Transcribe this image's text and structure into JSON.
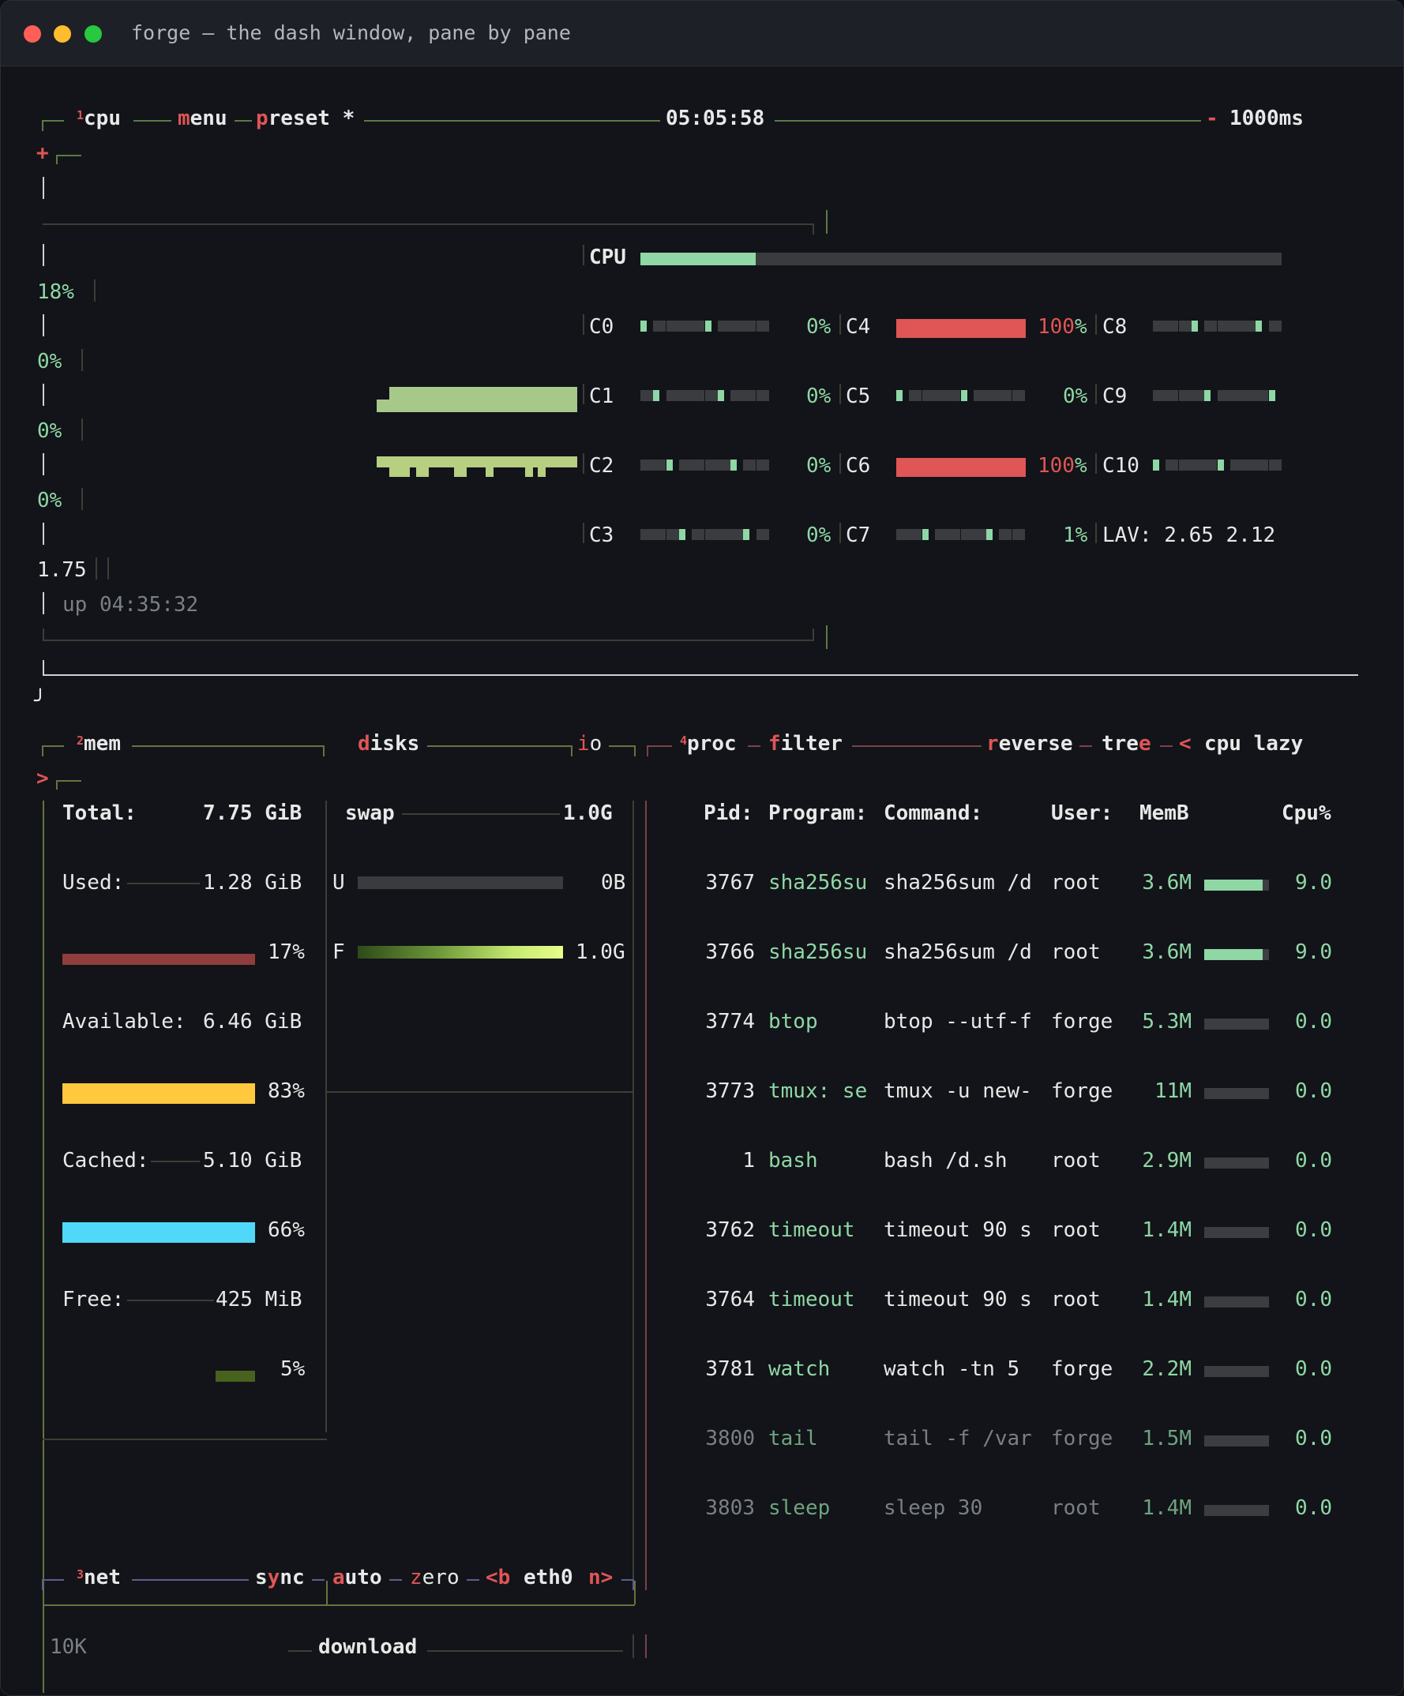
{
  "window": {
    "title": "forge — the dash window, pane by pane"
  },
  "colors": {
    "green": "#8fd7a5",
    "red": "#e05555",
    "yellow": "#ffc83d",
    "cyan": "#50d8f8",
    "darkred": "#8f3d3d"
  },
  "cpu_box": {
    "number": "1",
    "label": "cpu",
    "menu_first": "m",
    "menu_rest": "enu",
    "preset_first": "p",
    "preset_rest": "reset *",
    "clock": "05:05:58",
    "minus": "-",
    "interval": "1000ms",
    "plus": "+",
    "cpu_label": "CPU",
    "cpu_percent": 18,
    "graph_pct": [
      "18%",
      "0%",
      "0%",
      "0%"
    ],
    "load_value": "1.75",
    "uptime": "up 04:35:32",
    "cores": [
      {
        "name": "C0",
        "pct": "0%"
      },
      {
        "name": "C1",
        "pct": "0%"
      },
      {
        "name": "C2",
        "pct": "0%"
      },
      {
        "name": "C3",
        "pct": "0%"
      },
      {
        "name": "C4",
        "pct": "100",
        "unit": "%"
      },
      {
        "name": "C5",
        "pct": "0%"
      },
      {
        "name": "C6",
        "pct": "100",
        "unit": "%"
      },
      {
        "name": "C7",
        "pct": "1%"
      },
      {
        "name": "C8"
      },
      {
        "name": "C9"
      },
      {
        "name": "C10"
      }
    ],
    "lav": "LAV: 2.65 2.12"
  },
  "mem_box": {
    "number": "2",
    "label": "mem",
    "disks_first": "d",
    "disks_rest": "isks",
    "io_first": "i",
    "io_rest": "o",
    "arrow": ">",
    "total_label": "Total:",
    "total_value": "7.75 GiB",
    "used_label": "Used:",
    "used_value": "1.28 GiB",
    "used_pct": "17%",
    "used_frac": 0.17,
    "avail_label": "Available:",
    "avail_value": "6.46 GiB",
    "avail_pct": "83%",
    "avail_frac": 0.83,
    "cached_label": "Cached:",
    "cached_value": "5.10 GiB",
    "cached_pct": "66%",
    "cached_frac": 0.66,
    "free_label": "Free:",
    "free_value": "425 MiB",
    "free_pct": "5%",
    "free_frac": 0.05,
    "swap_label": "swap",
    "swap_value": "1.0G",
    "swap_u": "U",
    "swap_u_value": "0B",
    "swap_f": "F",
    "swap_f_value": "1.0G"
  },
  "proc_box": {
    "number": "4",
    "label": "proc",
    "filter_first": "f",
    "filter_rest": "ilter",
    "reverse_first": "r",
    "reverse_rest": "everse",
    "tree_a": "tre",
    "tree_b": "e",
    "lt": "<",
    "sort": "cpu lazy",
    "headers": {
      "pid": "Pid:",
      "program": "Program:",
      "command": "Command:",
      "user": "User:",
      "mem": "MemB",
      "cpu": "Cpu%"
    },
    "rows": [
      {
        "pid": "3767",
        "program": "sha256su",
        "command": "sha256sum /d",
        "user": "root",
        "mem": "3.6M",
        "cpu": "9.0",
        "cpu_frac": 0.9
      },
      {
        "pid": "3766",
        "program": "sha256su",
        "command": "sha256sum /d",
        "user": "root",
        "mem": "3.6M",
        "cpu": "9.0",
        "cpu_frac": 0.9
      },
      {
        "pid": "3774",
        "program": "btop",
        "command": "btop --utf-f",
        "user": "forge",
        "mem": "5.3M",
        "cpu": "0.0",
        "cpu_frac": 0
      },
      {
        "pid": "3773",
        "program": "tmux: se",
        "command": "tmux -u new-",
        "user": "forge",
        "mem": "11M",
        "cpu": "0.0",
        "cpu_frac": 0
      },
      {
        "pid": "1",
        "program": "bash",
        "command": "bash /d.sh",
        "user": "root",
        "mem": "2.9M",
        "cpu": "0.0",
        "cpu_frac": 0
      },
      {
        "pid": "3762",
        "program": "timeout",
        "command": "timeout 90 s",
        "user": "root",
        "mem": "1.4M",
        "cpu": "0.0",
        "cpu_frac": 0
      },
      {
        "pid": "3764",
        "program": "timeout",
        "command": "timeout 90 s",
        "user": "root",
        "mem": "1.4M",
        "cpu": "0.0",
        "cpu_frac": 0
      },
      {
        "pid": "3781",
        "program": "watch",
        "command": "watch -tn 5",
        "user": "forge",
        "mem": "2.2M",
        "cpu": "0.0",
        "cpu_frac": 0
      },
      {
        "pid": "3800",
        "program": "tail",
        "command": "tail -f /var",
        "user": "forge",
        "mem": "1.5M",
        "cpu": "0.0",
        "cpu_frac": 0
      },
      {
        "pid": "3803",
        "program": "sleep",
        "command": "sleep 30",
        "user": "root",
        "mem": "1.4M",
        "cpu": "0.0",
        "cpu_frac": 0
      }
    ]
  },
  "net_box": {
    "number": "3",
    "label": "net",
    "sync_a": "s",
    "sync_b": "y",
    "sync_c": "nc",
    "auto_first": "a",
    "auto_rest": "uto",
    "zero_first": "z",
    "zero_rest": "ero",
    "prev": "<b",
    "iface": "eth0",
    "next": "n>",
    "scale": "10K",
    "download": "download"
  }
}
